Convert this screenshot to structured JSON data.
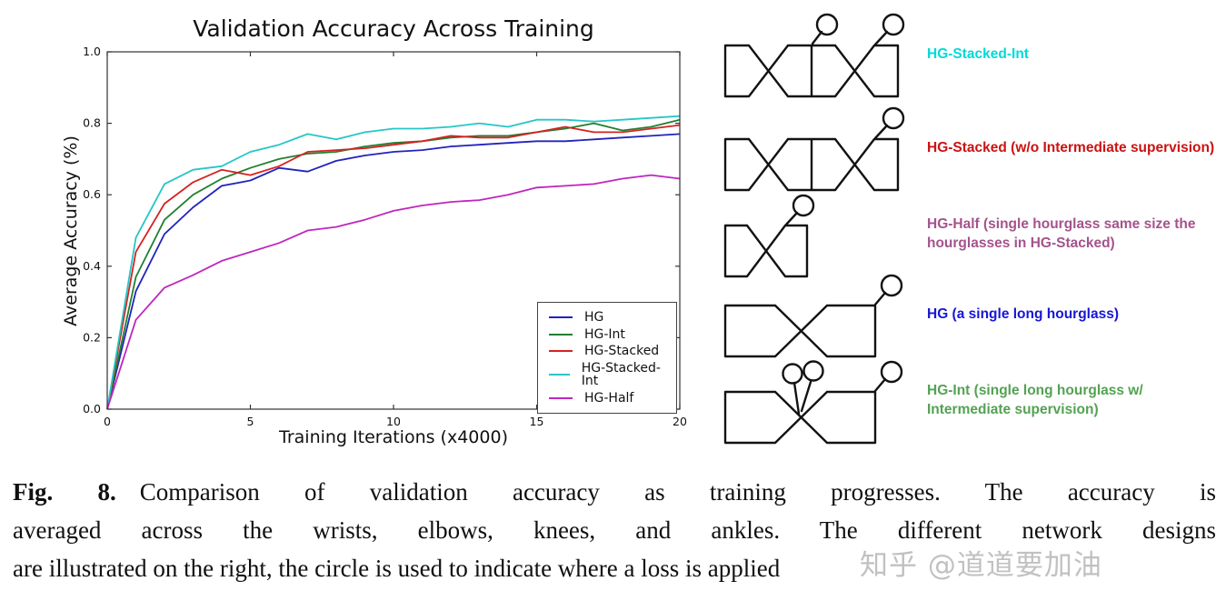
{
  "chart_data": {
    "type": "line",
    "title": "Validation Accuracy Across Training",
    "xlabel": "Training Iterations (x4000)",
    "ylabel": "Average Accuracy (%)",
    "xlim": [
      0,
      20
    ],
    "ylim": [
      0.0,
      1.0
    ],
    "x_ticks": [
      0,
      5,
      10,
      15,
      20
    ],
    "y_ticks": [
      0.0,
      0.2,
      0.4,
      0.6,
      0.8,
      1.0
    ],
    "grid": false,
    "legend_position": "lower right",
    "x": [
      0,
      1,
      2,
      3,
      4,
      5,
      6,
      7,
      8,
      9,
      10,
      11,
      12,
      13,
      14,
      15,
      16,
      17,
      18,
      19,
      20
    ],
    "series": [
      {
        "name": "HG",
        "color": "#2323bd",
        "values": [
          0.0,
          0.33,
          0.49,
          0.565,
          0.625,
          0.64,
          0.675,
          0.665,
          0.695,
          0.71,
          0.72,
          0.725,
          0.735,
          0.74,
          0.745,
          0.75,
          0.75,
          0.755,
          0.76,
          0.765,
          0.77
        ]
      },
      {
        "name": "HG-Int",
        "color": "#217f2f",
        "values": [
          0.0,
          0.37,
          0.53,
          0.6,
          0.645,
          0.675,
          0.7,
          0.715,
          0.72,
          0.735,
          0.745,
          0.75,
          0.76,
          0.765,
          0.765,
          0.775,
          0.785,
          0.8,
          0.78,
          0.79,
          0.81
        ]
      },
      {
        "name": "HG-Stacked",
        "color": "#d62222",
        "values": [
          0.0,
          0.44,
          0.575,
          0.635,
          0.67,
          0.655,
          0.68,
          0.72,
          0.725,
          0.73,
          0.74,
          0.75,
          0.765,
          0.76,
          0.76,
          0.775,
          0.79,
          0.775,
          0.775,
          0.785,
          0.795
        ]
      },
      {
        "name": "HG-Stacked-Int",
        "color": "#26c6c6",
        "values": [
          0.0,
          0.48,
          0.63,
          0.67,
          0.68,
          0.72,
          0.74,
          0.77,
          0.755,
          0.775,
          0.785,
          0.785,
          0.79,
          0.8,
          0.79,
          0.81,
          0.81,
          0.805,
          0.81,
          0.815,
          0.82
        ]
      },
      {
        "name": "HG-Half",
        "color": "#bf26bf",
        "values": [
          0.0,
          0.25,
          0.34,
          0.375,
          0.415,
          0.44,
          0.465,
          0.5,
          0.51,
          0.53,
          0.555,
          0.57,
          0.58,
          0.585,
          0.6,
          0.62,
          0.625,
          0.63,
          0.645,
          0.655,
          0.645
        ]
      }
    ]
  },
  "diagrams": [
    {
      "label": "HG-Stacked-Int",
      "color": "#00d9d9"
    },
    {
      "label": "HG-Stacked (w/o Intermediate supervision)",
      "color": "#cc1212"
    },
    {
      "label": "HG-Half (single hourglass same size the hourglasses in HG-Stacked)",
      "color": "#a4538c"
    },
    {
      "label": "HG (a single long hourglass)",
      "color": "#1616d6"
    },
    {
      "label": "HG-Int (single long hourglass w/ Intermediate supervision)",
      "color": "#53a253"
    }
  ],
  "caption": {
    "label": "Fig. 8.",
    "line1": "Comparison of validation accuracy as training progresses. The accuracy is",
    "line2": "averaged across the wrists, elbows, knees, and ankles. The different network designs",
    "line3": "are illustrated on the right, the circle is used to indicate where a loss is applied"
  },
  "watermark": "知乎 @道道要加油"
}
